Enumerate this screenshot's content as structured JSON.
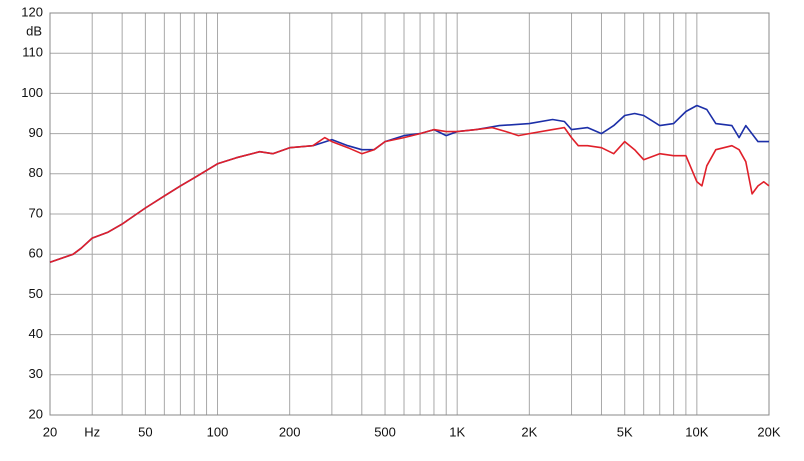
{
  "chart_data": {
    "type": "line",
    "ylabel": "dB",
    "xscale": "log",
    "xlim": [
      20,
      20000
    ],
    "ylim": [
      20,
      120
    ],
    "yticks": [
      20,
      30,
      40,
      50,
      60,
      70,
      80,
      90,
      100,
      110,
      120
    ],
    "xticks": [
      20,
      {
        "value": 30,
        "label": "Hz"
      },
      50,
      100,
      200,
      500,
      {
        "value": 1000,
        "label": "1K"
      },
      {
        "value": 2000,
        "label": "2K"
      },
      {
        "value": 5000,
        "label": "5K"
      },
      {
        "value": 10000,
        "label": "10K"
      },
      {
        "value": 20000,
        "label": "20K"
      }
    ],
    "x_minor_grid": [
      40,
      60,
      70,
      80,
      90,
      300,
      400,
      600,
      700,
      800,
      900,
      3000,
      4000,
      6000,
      7000,
      8000,
      9000
    ],
    "grid": true,
    "series": [
      {
        "color": "#1c2fa8",
        "x": [
          20,
          25,
          27,
          30,
          35,
          40,
          50,
          60,
          70,
          80,
          100,
          120,
          150,
          170,
          200,
          250,
          300,
          350,
          400,
          450,
          500,
          600,
          700,
          800,
          900,
          1000,
          1200,
          1500,
          2000,
          2500,
          2800,
          3000,
          3500,
          4000,
          4500,
          5000,
          5500,
          6000,
          7000,
          8000,
          9000,
          10000,
          11000,
          12000,
          14000,
          15000,
          16000,
          18000,
          20000
        ],
        "values": [
          58,
          60,
          61.5,
          64,
          65.5,
          67.5,
          71.5,
          74.5,
          77,
          79,
          82.5,
          84,
          85.5,
          85,
          86.5,
          87,
          88.5,
          87,
          86,
          86,
          88,
          89.5,
          90,
          91,
          89.5,
          90.5,
          91,
          92,
          92.5,
          93.5,
          93,
          91,
          91.5,
          90,
          92,
          94.5,
          95,
          94.5,
          92,
          92.5,
          95.5,
          97,
          96,
          92.5,
          92,
          89,
          92,
          88,
          88
        ]
      },
      {
        "color": "#e0202a",
        "x": [
          20,
          25,
          27,
          30,
          35,
          40,
          50,
          60,
          70,
          80,
          100,
          120,
          150,
          170,
          200,
          250,
          280,
          300,
          350,
          400,
          450,
          500,
          600,
          700,
          800,
          900,
          1000,
          1200,
          1400,
          1600,
          1800,
          2000,
          2500,
          2800,
          3000,
          3200,
          3500,
          4000,
          4500,
          5000,
          5500,
          6000,
          7000,
          8000,
          9000,
          10000,
          10500,
          11000,
          12000,
          14000,
          15000,
          16000,
          17000,
          18000,
          19000,
          20000
        ],
        "values": [
          58,
          60,
          61.5,
          64,
          65.5,
          67.5,
          71.5,
          74.5,
          77,
          79,
          82.5,
          84,
          85.5,
          85,
          86.5,
          87,
          89,
          88,
          86.5,
          85,
          86,
          88,
          89,
          90,
          91,
          90.5,
          90.5,
          91,
          91.5,
          90.5,
          89.5,
          90,
          91,
          91.5,
          89,
          87,
          87,
          86.5,
          85,
          88,
          86,
          83.5,
          85,
          84.5,
          84.5,
          78,
          77,
          82,
          86,
          87,
          86,
          83,
          75,
          77,
          78,
          77
        ]
      }
    ]
  }
}
